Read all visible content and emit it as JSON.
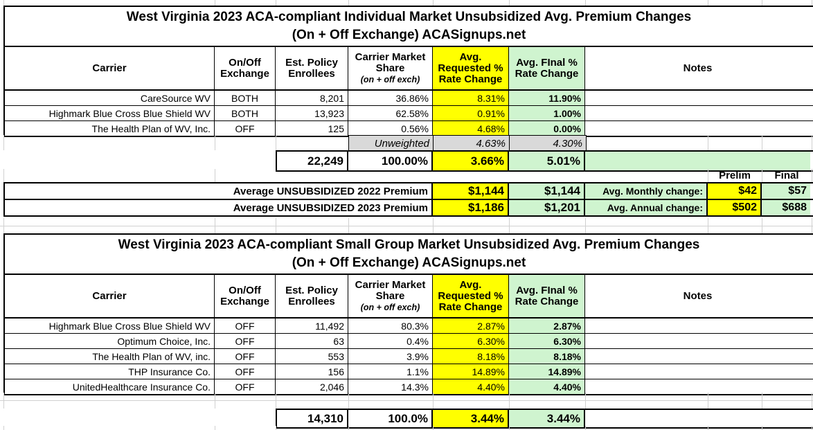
{
  "colors": {
    "highlight_yellow": "#FFFF00",
    "highlight_green": "#CFF4CF",
    "unweighted_gray": "#D9D9D9"
  },
  "table1": {
    "title_line1": "West Virginia 2023 ACA-compliant Individual Market Unsubsidized Avg. Premium Changes",
    "title_line2": "(On + Off Exchange) ACASignups.net",
    "headers": {
      "carrier": "Carrier",
      "exchange": "On/Off Exchange",
      "enrollees": "Est. Policy Enrollees",
      "share": "Carrier Market Share",
      "share_note": "(on + off exch)",
      "requested": "Avg. Requested % Rate Change",
      "final": "Avg. FInal % Rate Change",
      "notes": "Notes"
    },
    "rows": [
      {
        "carrier": "CareSource WV",
        "exchange": "BOTH",
        "enrollees": "8,201",
        "share": "36.86%",
        "requested": "8.31%",
        "final": "11.90%",
        "notes": ""
      },
      {
        "carrier": "Highmark Blue Cross Blue Shield WV",
        "exchange": "BOTH",
        "enrollees": "13,923",
        "share": "62.58%",
        "requested": "0.91%",
        "final": "1.00%",
        "notes": ""
      },
      {
        "carrier": "The Health Plan of WV, Inc.",
        "exchange": "OFF",
        "enrollees": "125",
        "share": "0.56%",
        "requested": "4.68%",
        "final": "0.00%",
        "notes": ""
      }
    ],
    "unweighted": {
      "label": "Unweighted",
      "requested": "4.63%",
      "final": "4.30%"
    },
    "total": {
      "enrollees": "22,249",
      "share": "100.00%",
      "requested": "3.66%",
      "final": "5.01%"
    }
  },
  "summary": {
    "col_headers": {
      "prelim": "Prelim",
      "final": "Final"
    },
    "rows": [
      {
        "label": "Average UNSUBSIDIZED 2022 Premium",
        "premium_requested": "$1,144",
        "premium_final": "$1,144",
        "change_label": "Avg. Monthly change:",
        "change_prelim": "$42",
        "change_final": "$57"
      },
      {
        "label": "Average UNSUBSIDIZED 2023 Premium",
        "premium_requested": "$1,186",
        "premium_final": "$1,201",
        "change_label": "Avg. Annual change:",
        "change_prelim": "$502",
        "change_final": "$688"
      }
    ]
  },
  "table2": {
    "title_line1": "West Virginia 2023 ACA-compliant Small Group Market Unsubsidized Avg. Premium Changes",
    "title_line2": "(On + Off Exchange) ACASignups.net",
    "headers": {
      "carrier": "Carrier",
      "exchange": "On/Off Exchange",
      "enrollees": "Est. Policy Enrollees",
      "share": "Carrier Market Share",
      "share_note": "(on + off exch)",
      "requested": "Avg. Requested % Rate Change",
      "final": "Avg. FInal % Rate Change",
      "notes": "Notes"
    },
    "rows": [
      {
        "carrier": "Highmark Blue Cross Blue Shield WV",
        "exchange": "OFF",
        "enrollees": "11,492",
        "share": "80.3%",
        "requested": "2.87%",
        "final": "2.87%",
        "notes": ""
      },
      {
        "carrier": "Optimum Choice, Inc.",
        "exchange": "OFF",
        "enrollees": "63",
        "share": "0.4%",
        "requested": "6.30%",
        "final": "6.30%",
        "notes": ""
      },
      {
        "carrier": "The Health Plan of WV, inc.",
        "exchange": "OFF",
        "enrollees": "553",
        "share": "3.9%",
        "requested": "8.18%",
        "final": "8.18%",
        "notes": ""
      },
      {
        "carrier": "THP Insurance Co.",
        "exchange": "OFF",
        "enrollees": "156",
        "share": "1.1%",
        "requested": "14.89%",
        "final": "14.89%",
        "notes": ""
      },
      {
        "carrier": "UnitedHealthcare Insurance Co.",
        "exchange": "OFF",
        "enrollees": "2,046",
        "share": "14.3%",
        "requested": "4.40%",
        "final": "4.40%",
        "notes": ""
      }
    ],
    "total": {
      "enrollees": "14,310",
      "share": "100.0%",
      "requested": "3.44%",
      "final": "3.44%"
    }
  }
}
